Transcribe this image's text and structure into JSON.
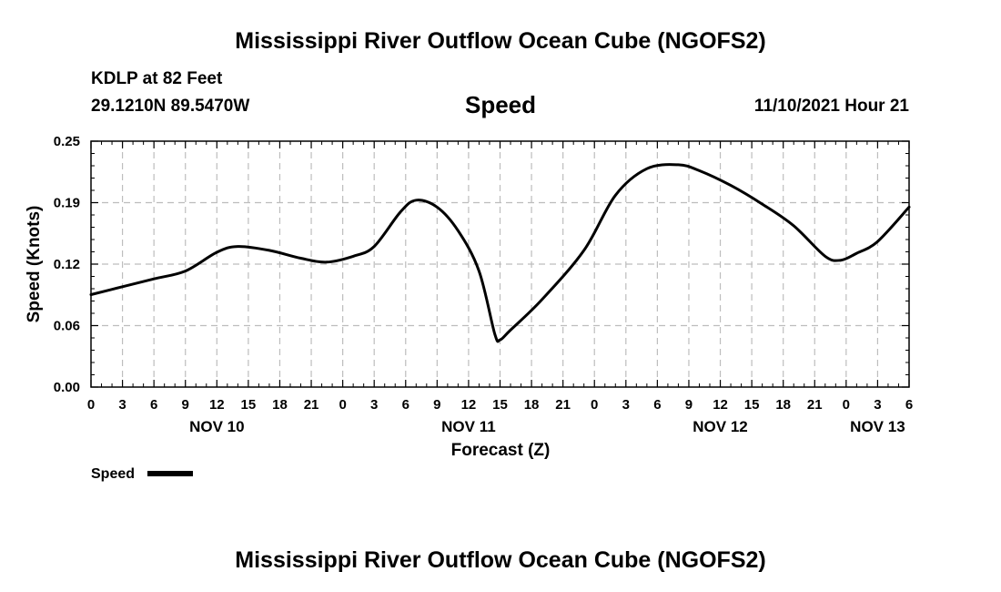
{
  "header": {
    "title": "Mississippi River Outflow Ocean Cube (NGOFS2)",
    "station": "KDLP at 82 Feet",
    "coords": "29.1210N  89.5470W",
    "datetime": "11/10/2021 Hour 21"
  },
  "footer": {
    "title": "Mississippi River Outflow Ocean Cube (NGOFS2)"
  },
  "chart_data": {
    "type": "line",
    "title": "Speed",
    "xlabel": "Forecast (Z)",
    "ylabel": "Speed (Knots)",
    "xlim": [
      0,
      78
    ],
    "ylim": [
      0,
      0.25
    ],
    "y_ticks": [
      "0.00",
      "0.06",
      "0.12",
      "0.19",
      "0.25"
    ],
    "y_tick_values": [
      0,
      0.0625,
      0.125,
      0.1875,
      0.25
    ],
    "x_ticks": [
      "0",
      "3",
      "6",
      "9",
      "12",
      "15",
      "18",
      "21",
      "0",
      "3",
      "6",
      "9",
      "12",
      "15",
      "18",
      "21",
      "0",
      "3",
      "6",
      "9",
      "12",
      "15",
      "18",
      "21",
      "0",
      "3",
      "6"
    ],
    "x_tick_values": [
      0,
      3,
      6,
      9,
      12,
      15,
      18,
      21,
      24,
      27,
      30,
      33,
      36,
      39,
      42,
      45,
      48,
      51,
      54,
      57,
      60,
      63,
      66,
      69,
      72,
      75,
      78
    ],
    "day_labels": [
      {
        "label": "NOV 10",
        "x": 12
      },
      {
        "label": "NOV 11",
        "x": 36
      },
      {
        "label": "NOV 12",
        "x": 60
      },
      {
        "label": "NOV 13",
        "x": 75
      }
    ],
    "grid": true,
    "legend": "bottom-left",
    "series": [
      {
        "name": "Speed",
        "color": "#000000",
        "x": [
          0,
          3,
          6,
          9,
          12,
          14,
          17,
          20,
          22.5,
          25,
          27,
          29.5,
          31,
          33,
          35,
          37,
          38.5,
          39,
          40,
          43,
          47,
          50,
          53,
          56,
          58,
          61,
          64,
          67,
          70,
          71.5,
          73,
          75,
          78
        ],
        "y": [
          0.094,
          0.102,
          0.11,
          0.118,
          0.137,
          0.143,
          0.139,
          0.131,
          0.127,
          0.133,
          0.143,
          0.178,
          0.19,
          0.183,
          0.159,
          0.118,
          0.054,
          0.048,
          0.058,
          0.089,
          0.139,
          0.195,
          0.222,
          0.226,
          0.22,
          0.205,
          0.186,
          0.164,
          0.133,
          0.129,
          0.136,
          0.148,
          0.183
        ]
      }
    ]
  }
}
